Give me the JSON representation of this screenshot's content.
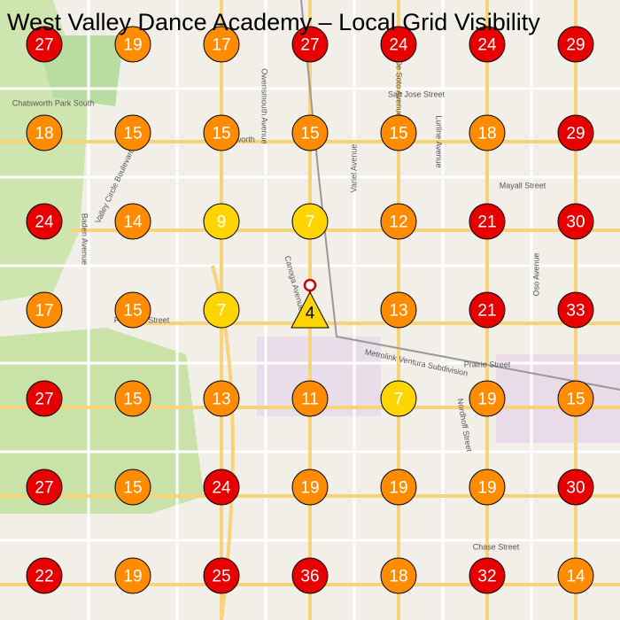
{
  "title": "West Valley Dance Academy – Local Grid Visibility",
  "grid": {
    "rows": [
      [
        27,
        19,
        17,
        27,
        24,
        24,
        29
      ],
      [
        18,
        15,
        15,
        15,
        15,
        18,
        29
      ],
      [
        24,
        14,
        9,
        7,
        12,
        21,
        30
      ],
      [
        17,
        15,
        7,
        null,
        13,
        21,
        33
      ],
      [
        27,
        15,
        13,
        11,
        7,
        19,
        15
      ],
      [
        27,
        15,
        24,
        19,
        19,
        19,
        30
      ],
      [
        22,
        19,
        25,
        36,
        18,
        32,
        14
      ]
    ]
  },
  "business": {
    "rank": 4
  },
  "streets": [
    "San Jose Street",
    "Mayall Street",
    "Plummer Street",
    "Prairie Street",
    "Chase Street",
    "Lurline Avenue",
    "Variel Avenue",
    "Owensmouth Avenue",
    "Canoga Avenue",
    "Nordhoff Street",
    "Oso Avenue",
    "Baden Avenue",
    "Valley Circle Boulevard",
    "Chatsworth",
    "Chatsworth Park South",
    "Metrolink Ventura Subdivision",
    "De Soto Avenue"
  ]
}
